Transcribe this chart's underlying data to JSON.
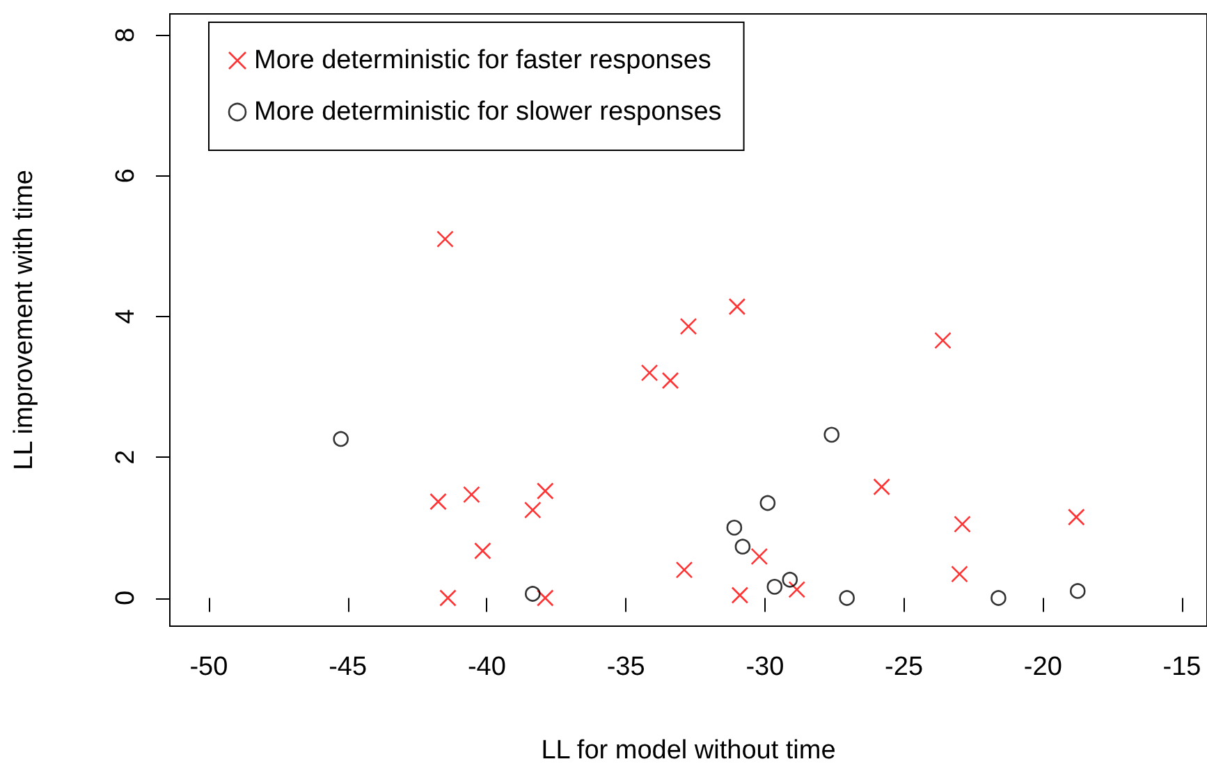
{
  "chart_data": {
    "type": "scatter",
    "xlabel": "LL for model without time",
    "ylabel": "LL improvement with time",
    "xlim": [
      -51.4,
      -14.1
    ],
    "ylim": [
      -0.4,
      8.3
    ],
    "xticks": [
      -50,
      -45,
      -40,
      -35,
      -30,
      -25,
      -20,
      -15
    ],
    "yticks": [
      0,
      2,
      4,
      6,
      8
    ],
    "grid": false,
    "legend": "top left",
    "series": [
      {
        "name": "More deterministic for faster responses",
        "color": "#ff0000",
        "marker": "cross",
        "x": [
          -41.5,
          -41.75,
          -40.55,
          -40.15,
          -41.4,
          -38.35,
          -37.9,
          -37.9,
          -34.15,
          -33.4,
          -32.75,
          -31.0,
          -32.9,
          -30.9,
          -30.2,
          -28.85,
          -25.8,
          -23.6,
          -22.9,
          -23.0,
          -18.8
        ],
        "values": [
          5.1,
          1.37,
          1.47,
          0.67,
          0.0,
          1.25,
          1.52,
          0.0,
          3.2,
          3.09,
          3.86,
          4.14,
          0.4,
          0.04,
          0.59,
          0.12,
          1.58,
          3.66,
          1.05,
          0.34,
          1.15
        ]
      },
      {
        "name": "More deterministic for slower responses",
        "color": "#000000",
        "marker": "circle",
        "x": [
          -45.25,
          -38.35,
          -31.1,
          -30.8,
          -29.9,
          -29.65,
          -29.1,
          -27.6,
          -27.05,
          -21.6,
          -18.75
        ],
        "values": [
          2.26,
          0.06,
          1.0,
          0.73,
          1.35,
          0.16,
          0.26,
          2.32,
          0.0,
          0.0,
          0.1
        ]
      }
    ]
  }
}
